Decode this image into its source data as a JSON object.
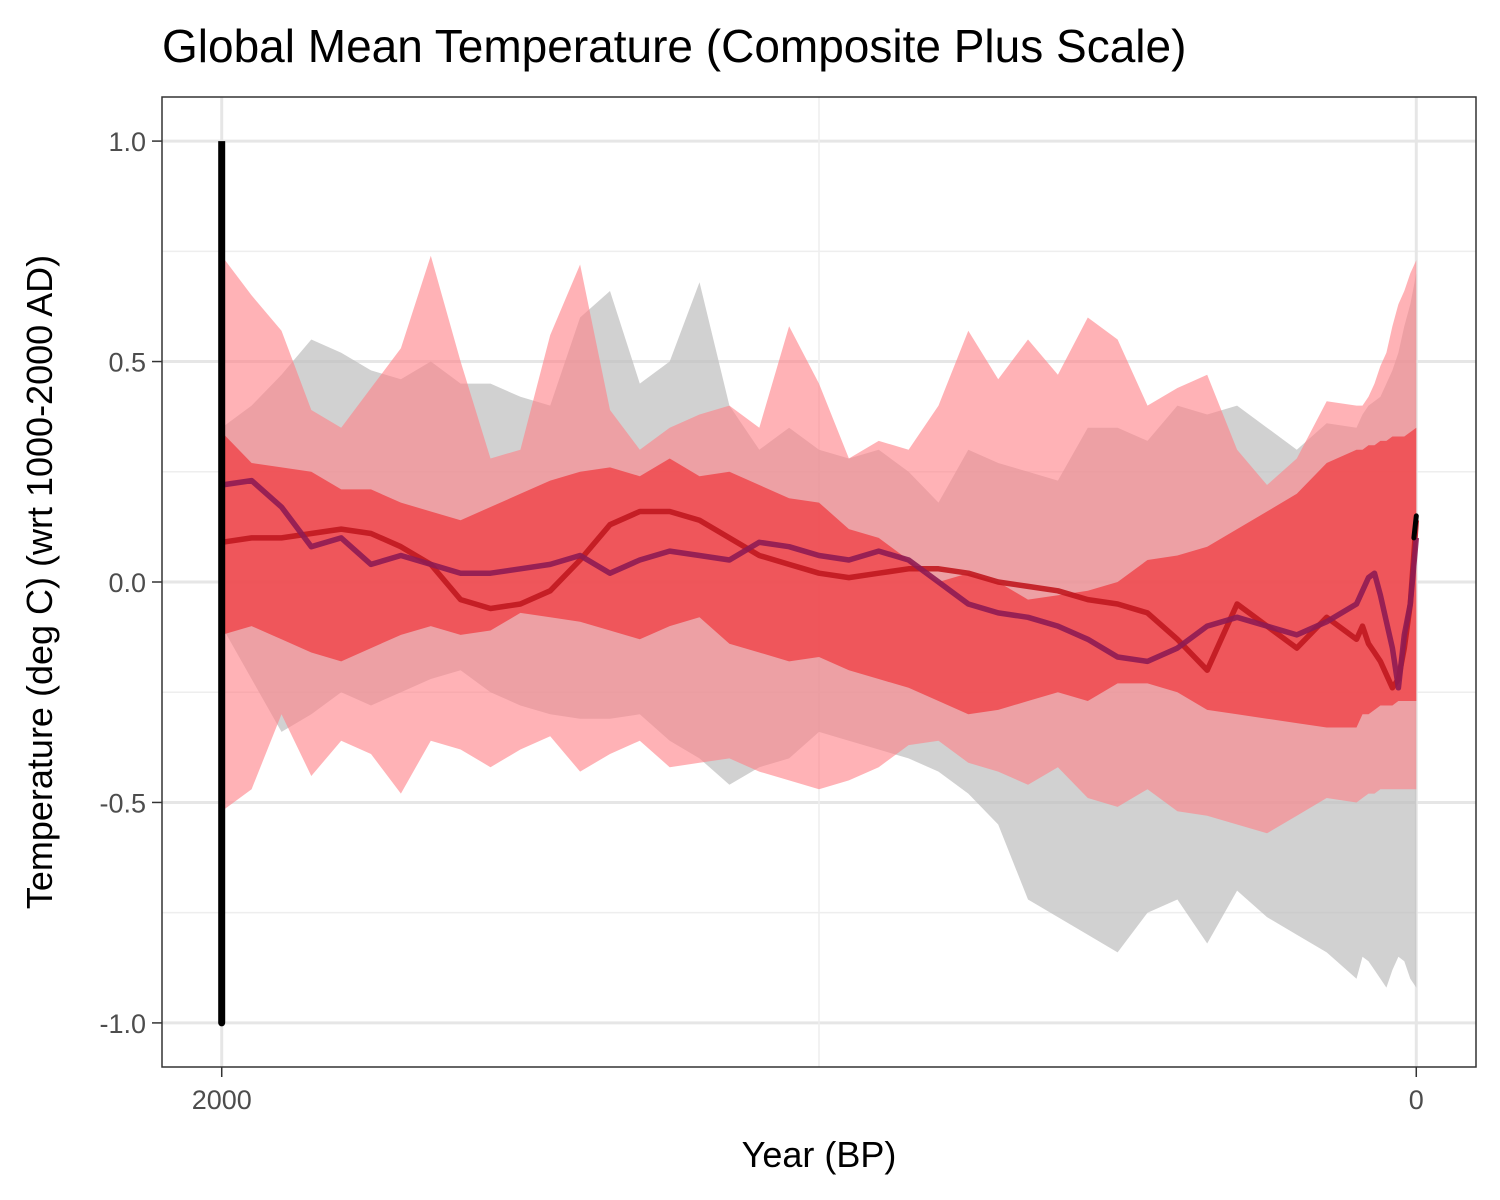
{
  "chart_data": {
    "type": "area",
    "title": "Global Mean Temperature (Composite Plus Scale)",
    "xlabel": "Year (BP)",
    "ylabel": "Temperature (deg C) (wrt 1000-2000 AD)",
    "xlim": [
      2100,
      -100
    ],
    "ylim": [
      -1.1,
      1.1
    ],
    "x_reversed": true,
    "xticks": [
      2000,
      0
    ],
    "xtick_labels": [
      "2000",
      "0"
    ],
    "yticks": [
      1.0,
      0.5,
      0.0,
      -0.5,
      -1.0
    ],
    "ytick_labels": [
      "1.0",
      "0.5",
      "0.0",
      "-0.5",
      "-1.0"
    ],
    "grid": true,
    "legend": "none",
    "colors": {
      "outer_gray_band": "#bdbdbd",
      "outer_pink_band": "#ff7f86",
      "mid_band": "#d77a7f",
      "inner_red_band": "#f0393e",
      "red_line": "#c0181f",
      "purple_line": "#8e1b53",
      "black_line": "#000000"
    },
    "x": [
      2000,
      1950,
      1900,
      1850,
      1800,
      1750,
      1700,
      1650,
      1600,
      1550,
      1500,
      1450,
      1400,
      1350,
      1300,
      1250,
      1200,
      1150,
      1100,
      1050,
      1000,
      950,
      900,
      850,
      800,
      750,
      700,
      650,
      600,
      550,
      500,
      450,
      400,
      350,
      300,
      250,
      200,
      150,
      100,
      90,
      80,
      70,
      60,
      50,
      40,
      30,
      20,
      10,
      0
    ],
    "series": [
      {
        "role": "gray-band",
        "lower": [
          -0.1,
          -0.22,
          -0.34,
          -0.3,
          -0.25,
          -0.28,
          -0.25,
          -0.22,
          -0.2,
          -0.25,
          -0.28,
          -0.3,
          -0.31,
          -0.31,
          -0.3,
          -0.36,
          -0.4,
          -0.46,
          -0.42,
          -0.4,
          -0.34,
          -0.36,
          -0.38,
          -0.4,
          -0.43,
          -0.48,
          -0.55,
          -0.72,
          -0.76,
          -0.8,
          -0.84,
          -0.75,
          -0.72,
          -0.82,
          -0.7,
          -0.76,
          -0.8,
          -0.84,
          -0.9,
          -0.85,
          -0.86,
          -0.88,
          -0.9,
          -0.92,
          -0.88,
          -0.85,
          -0.86,
          -0.9,
          -0.92
        ],
        "upper": [
          0.35,
          0.4,
          0.47,
          0.55,
          0.52,
          0.48,
          0.46,
          0.5,
          0.45,
          0.45,
          0.42,
          0.4,
          0.6,
          0.66,
          0.45,
          0.5,
          0.68,
          0.4,
          0.3,
          0.35,
          0.3,
          0.28,
          0.3,
          0.25,
          0.18,
          0.3,
          0.27,
          0.25,
          0.23,
          0.35,
          0.35,
          0.32,
          0.4,
          0.38,
          0.4,
          0.35,
          0.3,
          0.36,
          0.35,
          0.38,
          0.4,
          0.41,
          0.42,
          0.45,
          0.48,
          0.52,
          0.58,
          0.63,
          0.7
        ]
      },
      {
        "role": "pink-band",
        "lower": [
          -0.52,
          -0.47,
          -0.3,
          -0.44,
          -0.36,
          -0.39,
          -0.48,
          -0.36,
          -0.38,
          -0.42,
          -0.38,
          -0.35,
          -0.43,
          -0.39,
          -0.36,
          -0.42,
          -0.41,
          -0.4,
          -0.43,
          -0.45,
          -0.47,
          -0.45,
          -0.42,
          -0.37,
          -0.36,
          -0.41,
          -0.43,
          -0.46,
          -0.42,
          -0.49,
          -0.51,
          -0.47,
          -0.52,
          -0.53,
          -0.55,
          -0.57,
          -0.53,
          -0.49,
          -0.5,
          -0.49,
          -0.48,
          -0.48,
          -0.47,
          -0.47,
          -0.47,
          -0.47,
          -0.47,
          -0.47,
          -0.47
        ],
        "upper": [
          0.74,
          0.65,
          0.57,
          0.39,
          0.35,
          0.44,
          0.53,
          0.74,
          0.5,
          0.28,
          0.3,
          0.56,
          0.72,
          0.39,
          0.3,
          0.35,
          0.38,
          0.4,
          0.35,
          0.58,
          0.45,
          0.28,
          0.32,
          0.3,
          0.4,
          0.57,
          0.46,
          0.55,
          0.47,
          0.6,
          0.55,
          0.4,
          0.44,
          0.47,
          0.3,
          0.22,
          0.28,
          0.41,
          0.4,
          0.4,
          0.42,
          0.45,
          0.49,
          0.52,
          0.58,
          0.63,
          0.66,
          0.7,
          0.73
        ]
      },
      {
        "role": "inner-band",
        "lower": [
          -0.12,
          -0.1,
          -0.13,
          -0.16,
          -0.18,
          -0.15,
          -0.12,
          -0.1,
          -0.12,
          -0.11,
          -0.07,
          -0.08,
          -0.09,
          -0.11,
          -0.13,
          -0.1,
          -0.08,
          -0.14,
          -0.16,
          -0.18,
          -0.17,
          -0.2,
          -0.22,
          -0.24,
          -0.27,
          -0.3,
          -0.29,
          -0.27,
          -0.25,
          -0.27,
          -0.23,
          -0.23,
          -0.25,
          -0.29,
          -0.3,
          -0.31,
          -0.32,
          -0.33,
          -0.33,
          -0.3,
          -0.3,
          -0.29,
          -0.28,
          -0.28,
          -0.28,
          -0.27,
          -0.27,
          -0.27,
          -0.27
        ],
        "upper": [
          0.34,
          0.27,
          0.26,
          0.25,
          0.21,
          0.21,
          0.18,
          0.16,
          0.14,
          0.17,
          0.2,
          0.23,
          0.25,
          0.26,
          0.24,
          0.28,
          0.24,
          0.25,
          0.22,
          0.19,
          0.18,
          0.12,
          0.1,
          0.05,
          0.0,
          0.02,
          0.0,
          -0.04,
          -0.03,
          -0.02,
          0.0,
          0.05,
          0.06,
          0.08,
          0.12,
          0.16,
          0.2,
          0.27,
          0.3,
          0.3,
          0.31,
          0.31,
          0.32,
          0.32,
          0.33,
          0.33,
          0.33,
          0.34,
          0.35
        ]
      },
      {
        "role": "red-line",
        "values": [
          0.09,
          0.1,
          0.1,
          0.11,
          0.12,
          0.11,
          0.08,
          0.04,
          -0.04,
          -0.06,
          -0.05,
          -0.02,
          0.05,
          0.13,
          0.16,
          0.16,
          0.14,
          0.1,
          0.06,
          0.04,
          0.02,
          0.01,
          0.02,
          0.03,
          0.03,
          0.02,
          0.0,
          -0.01,
          -0.02,
          -0.04,
          -0.05,
          -0.07,
          -0.13,
          -0.2,
          -0.05,
          -0.1,
          -0.15,
          -0.08,
          -0.13,
          -0.1,
          -0.14,
          -0.16,
          -0.18,
          -0.21,
          -0.24,
          -0.22,
          -0.15,
          -0.05,
          0.14
        ]
      },
      {
        "role": "purple-line",
        "values": [
          0.22,
          0.23,
          0.17,
          0.08,
          0.1,
          0.04,
          0.06,
          0.04,
          0.02,
          0.02,
          0.03,
          0.04,
          0.06,
          0.02,
          0.05,
          0.07,
          0.06,
          0.05,
          0.09,
          0.08,
          0.06,
          0.05,
          0.07,
          0.05,
          0.0,
          -0.05,
          -0.07,
          -0.08,
          -0.1,
          -0.13,
          -0.17,
          -0.18,
          -0.15,
          -0.1,
          -0.08,
          -0.1,
          -0.12,
          -0.09,
          -0.05,
          -0.02,
          0.01,
          0.02,
          -0.03,
          -0.09,
          -0.15,
          -0.24,
          -0.12,
          -0.05,
          0.1
        ]
      },
      {
        "role": "black-line",
        "x": [
          2000,
          2000,
          2000
        ],
        "values": [
          -1.0,
          1.0,
          -1.0
        ],
        "end_segment": {
          "x": [
            4,
            0
          ],
          "values": [
            0.1,
            0.15
          ]
        }
      }
    ]
  }
}
